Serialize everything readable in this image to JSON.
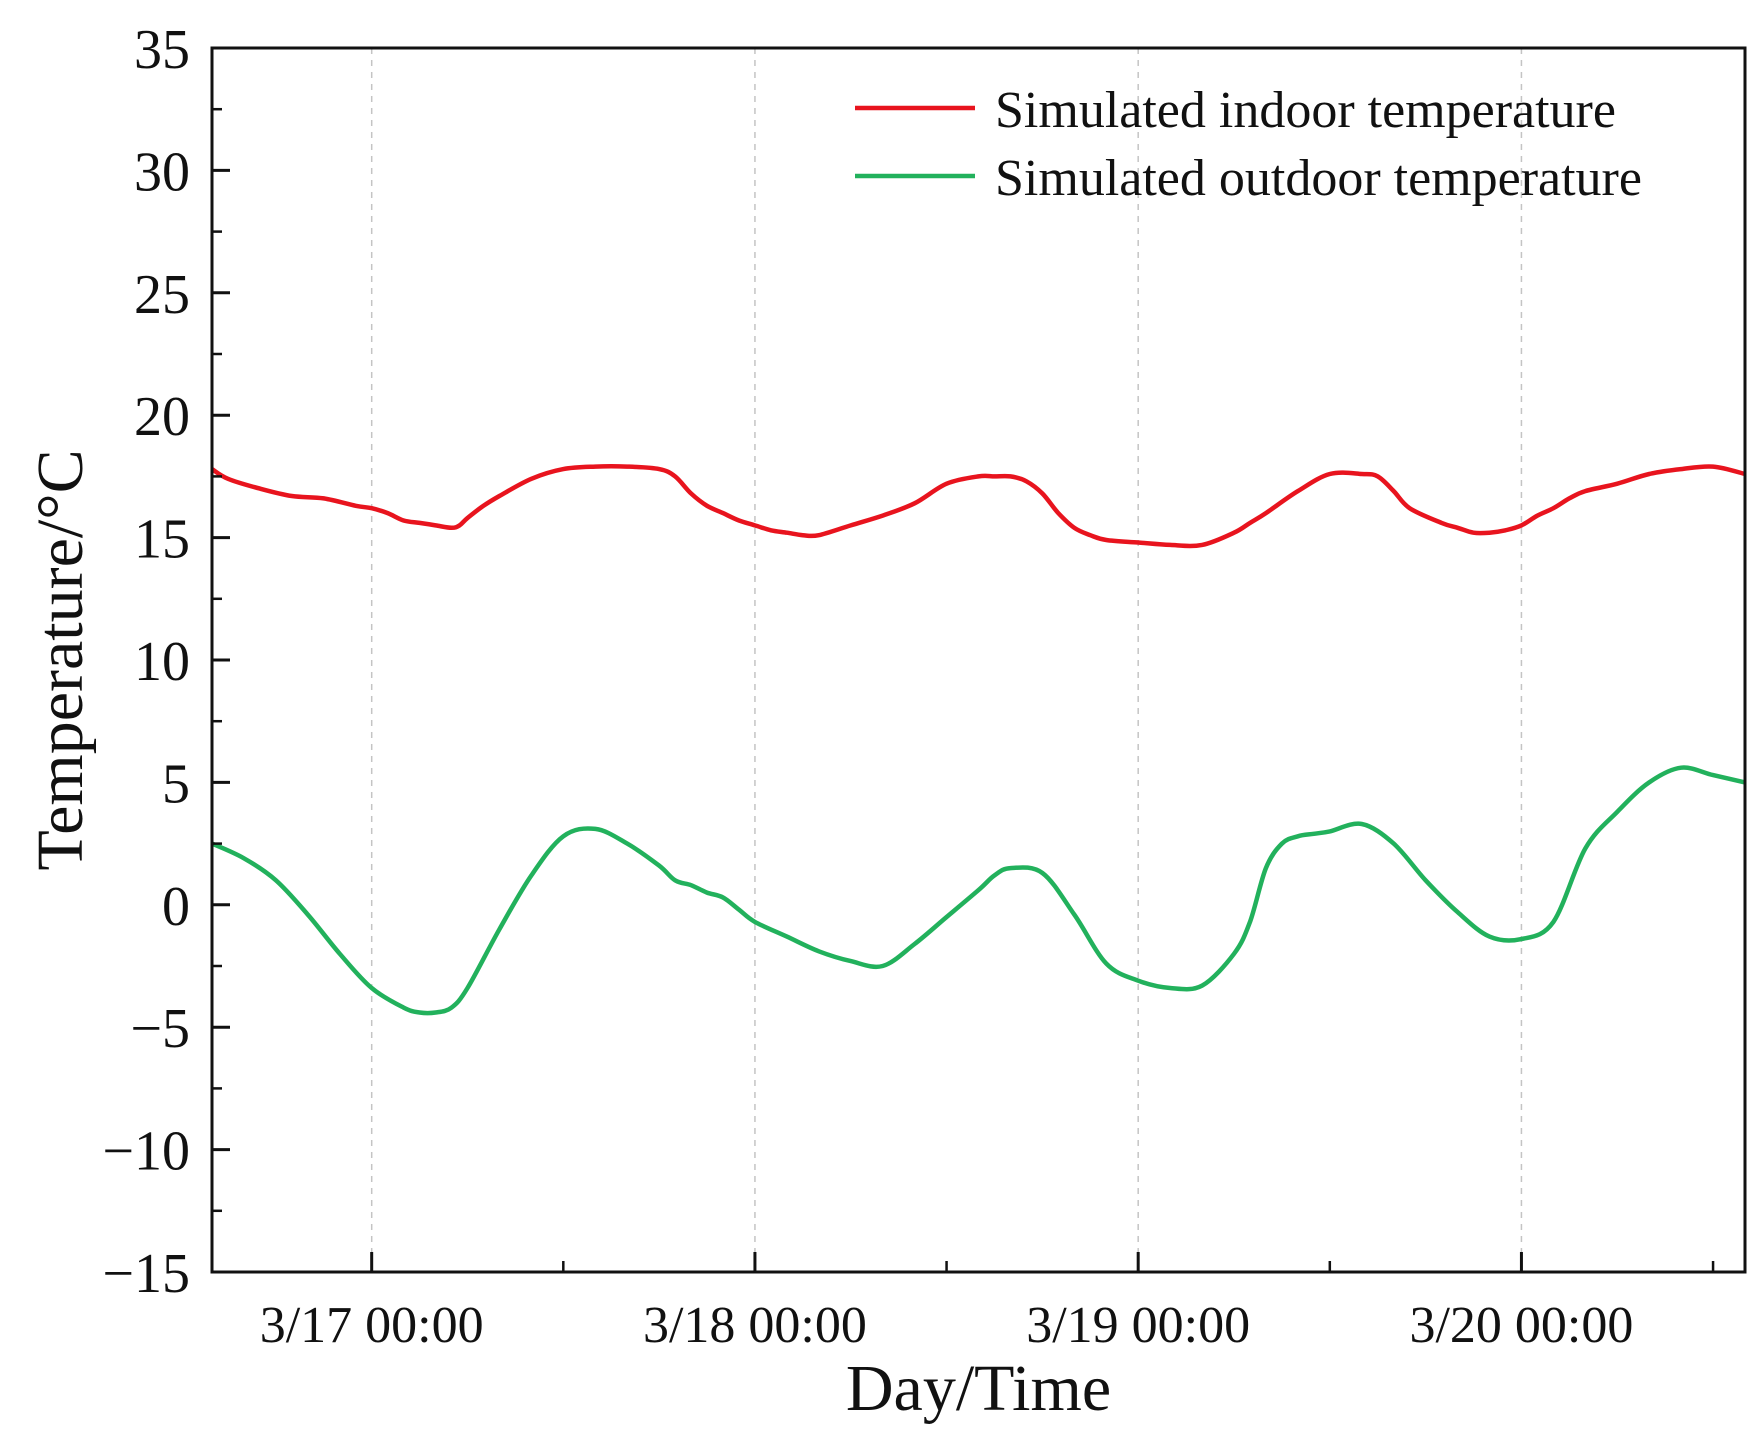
{
  "chart_data": {
    "type": "line",
    "title": "",
    "xlabel": "Day/Time",
    "ylabel": "Temperature/°C",
    "x_unit": "hours from 3/17 00:00",
    "xlim": [
      -10,
      86
    ],
    "ylim": [
      -15,
      35
    ],
    "y_ticks": [
      35,
      30,
      25,
      20,
      15,
      10,
      5,
      0,
      -5,
      -10,
      -15
    ],
    "y_tick_labels": [
      "35",
      "30",
      "25",
      "20",
      "15",
      "10",
      "5",
      "0",
      "−5",
      "−10",
      "−15"
    ],
    "x_major_ticks": [
      0,
      24,
      48,
      72
    ],
    "x_tick_labels": [
      "3/17 00:00",
      "3/18 00:00",
      "3/19 00:00",
      "3/20 00:00"
    ],
    "x_minor_ticks": [
      12,
      36,
      60,
      84
    ],
    "grid": "vertical dashed at major x ticks",
    "legend_position": "top-right",
    "series": [
      {
        "name": "Simulated indoor temperature",
        "color": "#e8141e",
        "x": [
          -10,
          -9,
          -7,
          -5,
          -3,
          -1,
          0,
          1,
          2,
          3,
          4,
          5,
          5.5,
          6,
          7,
          8,
          10,
          12,
          14,
          16,
          18,
          19,
          20,
          21,
          22,
          23,
          24,
          25,
          26,
          27,
          28,
          30,
          32,
          34,
          36,
          38,
          39,
          40,
          41,
          42,
          43,
          44,
          45,
          46,
          48,
          50,
          52,
          54,
          55,
          56,
          58,
          60,
          62,
          63,
          64,
          65,
          67,
          68,
          69,
          70,
          71,
          72,
          73,
          74,
          75,
          76,
          78,
          80,
          82,
          84,
          86
        ],
        "values": [
          17.8,
          17.4,
          17.0,
          16.7,
          16.6,
          16.3,
          16.2,
          16.0,
          15.7,
          15.6,
          15.5,
          15.4,
          15.5,
          15.8,
          16.3,
          16.7,
          17.4,
          17.8,
          17.9,
          17.9,
          17.8,
          17.5,
          16.8,
          16.3,
          16.0,
          15.7,
          15.5,
          15.3,
          15.2,
          15.1,
          15.1,
          15.5,
          15.9,
          16.4,
          17.2,
          17.5,
          17.5,
          17.5,
          17.3,
          16.8,
          16.0,
          15.4,
          15.1,
          14.9,
          14.8,
          14.7,
          14.7,
          15.2,
          15.6,
          16.0,
          16.9,
          17.6,
          17.6,
          17.5,
          16.9,
          16.2,
          15.6,
          15.4,
          15.2,
          15.2,
          15.3,
          15.5,
          15.9,
          16.2,
          16.6,
          16.9,
          17.2,
          17.6,
          17.8,
          17.9,
          17.6
        ]
      },
      {
        "name": "Simulated outdoor temperature",
        "color": "#22b15c",
        "x": [
          -10,
          -8,
          -6,
          -4,
          -2,
          0,
          2,
          3,
          4,
          5,
          6,
          8,
          10,
          12,
          14,
          16,
          18,
          19,
          20,
          21,
          22,
          23,
          24,
          26,
          28,
          30,
          32,
          34,
          36,
          38,
          39,
          40,
          42,
          44,
          46,
          48,
          50,
          52,
          54,
          55,
          56,
          57,
          58,
          59,
          60,
          62,
          64,
          66,
          68,
          70,
          72,
          74,
          76,
          78,
          80,
          82,
          84,
          86
        ],
        "values": [
          2.5,
          1.9,
          1.0,
          -0.4,
          -2.0,
          -3.4,
          -4.2,
          -4.4,
          -4.4,
          -4.2,
          -3.4,
          -1.0,
          1.2,
          2.8,
          3.1,
          2.5,
          1.6,
          1.0,
          0.8,
          0.5,
          0.3,
          -0.2,
          -0.7,
          -1.3,
          -1.9,
          -2.3,
          -2.5,
          -1.6,
          -0.5,
          0.6,
          1.2,
          1.5,
          1.3,
          -0.4,
          -2.4,
          -3.1,
          -3.4,
          -3.3,
          -2.0,
          -0.7,
          1.5,
          2.5,
          2.8,
          2.9,
          3.0,
          3.3,
          2.5,
          1.0,
          -0.3,
          -1.3,
          -1.4,
          -0.7,
          2.3,
          3.8,
          5.0,
          5.6,
          5.3,
          5.0
        ]
      }
    ]
  }
}
